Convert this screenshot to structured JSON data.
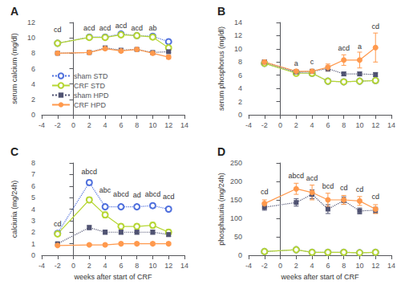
{
  "chart_data": [
    {
      "type": "line",
      "title": "A",
      "x": [
        -2,
        2,
        4,
        6,
        8,
        10,
        12
      ],
      "xlim": [
        -4,
        14
      ],
      "xticks": [
        -4,
        -2,
        0,
        2,
        4,
        6,
        8,
        10,
        12,
        14
      ],
      "ylabel": "serum calcium (mg/dl)",
      "ylim": [
        0,
        12
      ],
      "yticks": [
        0,
        2,
        4,
        6,
        8,
        10,
        12
      ],
      "grid": false,
      "legend": "lower left",
      "series": [
        {
          "name": "sham STD",
          "marker": "open-circle",
          "line_style": "dotted",
          "values": [
            9.3,
            10.1,
            10.1,
            10.5,
            10.3,
            10.2,
            9.5
          ],
          "errors": [
            0.15,
            0.12,
            0.12,
            0.12,
            0.12,
            0.12,
            0.2
          ]
        },
        {
          "name": "CRF STD",
          "marker": "open-circle",
          "line_style": "solid",
          "values": [
            9.3,
            10.05,
            10.05,
            10.4,
            10.3,
            10.1,
            8.7
          ],
          "errors": [
            0.15,
            0.12,
            0.12,
            0.12,
            0.12,
            0.18,
            0.25
          ]
        },
        {
          "name": "sham HPD",
          "marker": "square",
          "line_style": "dotted",
          "values": [
            8.0,
            8.1,
            8.7,
            8.4,
            8.5,
            8.1,
            8.2
          ],
          "errors": [
            0.12,
            0.1,
            0.12,
            0.12,
            0.15,
            0.12,
            0.12
          ]
        },
        {
          "name": "CRF HPD",
          "marker": "circle",
          "line_style": "solid",
          "values": [
            8.0,
            8.1,
            8.6,
            8.3,
            8.5,
            8.0,
            7.5
          ],
          "errors": [
            0.12,
            0.1,
            0.12,
            0.12,
            0.15,
            0.2,
            0.25
          ]
        }
      ],
      "annotations": [
        {
          "x": -2,
          "y": 10.6,
          "text": "cd"
        },
        {
          "x": 2,
          "y": 10.85,
          "text": "acd"
        },
        {
          "x": 4,
          "y": 10.85,
          "text": "acd"
        },
        {
          "x": 6,
          "y": 11.1,
          "text": "acd"
        },
        {
          "x": 8,
          "y": 10.85,
          "text": "acd"
        },
        {
          "x": 10,
          "y": 10.75,
          "text": "ab"
        }
      ]
    },
    {
      "type": "line",
      "title": "B",
      "x": [
        -2,
        2,
        4,
        6,
        8,
        10,
        12
      ],
      "xlim": [
        -4,
        14
      ],
      "xticks": [
        -4,
        -2,
        0,
        2,
        4,
        6,
        8,
        10,
        12,
        14
      ],
      "ylabel": "serum phosphorus (mg/dl)",
      "ylim": [
        0,
        14
      ],
      "yticks": [
        0,
        2,
        4,
        6,
        8,
        10,
        12,
        14
      ],
      "grid": false,
      "series": [
        {
          "name": "sham STD",
          "marker": "open-circle",
          "line_style": "dotted",
          "values": [
            7.8,
            6.4,
            6.3,
            5.1,
            5.0,
            5.1,
            5.2
          ],
          "errors": [
            0.25,
            0.2,
            0.2,
            0.2,
            0.2,
            0.2,
            0.2
          ]
        },
        {
          "name": "CRF STD",
          "marker": "open-circle",
          "line_style": "solid",
          "values": [
            7.8,
            6.3,
            6.3,
            5.1,
            5.0,
            5.1,
            5.2
          ],
          "errors": [
            0.25,
            0.2,
            0.2,
            0.2,
            0.2,
            0.2,
            0.2
          ]
        },
        {
          "name": "sham HPD",
          "marker": "square",
          "line_style": "dotted",
          "values": [
            8.0,
            6.5,
            6.6,
            7.0,
            6.2,
            6.2,
            6.1
          ],
          "errors": [
            0.3,
            0.25,
            0.25,
            0.4,
            0.3,
            0.3,
            0.3
          ]
        },
        {
          "name": "CRF HPD",
          "marker": "circle",
          "line_style": "solid",
          "values": [
            8.0,
            6.6,
            6.6,
            7.2,
            8.3,
            8.3,
            10.2
          ],
          "errors": [
            0.3,
            0.25,
            0.25,
            0.5,
            0.8,
            1.2,
            2.2
          ]
        }
      ],
      "annotations": [
        {
          "x": 2,
          "y": 7.3,
          "text": "a"
        },
        {
          "x": 4,
          "y": 7.5,
          "text": "c"
        },
        {
          "x": 8,
          "y": 9.5,
          "text": "acd"
        },
        {
          "x": 10,
          "y": 9.8,
          "text": "a"
        },
        {
          "x": 12,
          "y": 12.9,
          "text": "cd"
        }
      ]
    },
    {
      "type": "line",
      "title": "C",
      "x": [
        -2,
        2,
        4,
        6,
        8,
        10,
        12
      ],
      "xlabel": "weeks after start of CRF",
      "xlim": [
        -4,
        14
      ],
      "xticks": [
        -4,
        -2,
        0,
        2,
        4,
        6,
        8,
        10,
        12,
        14
      ],
      "ylabel": "calciuria (mg/24h)",
      "ylim": [
        0,
        8
      ],
      "yticks": [
        0,
        1,
        2,
        3,
        4,
        5,
        6,
        7,
        8
      ],
      "grid": false,
      "series": [
        {
          "name": "sham STD",
          "marker": "open-circle",
          "line_style": "dotted",
          "values": [
            1.9,
            6.3,
            4.2,
            4.2,
            4.2,
            4.3,
            4.0
          ],
          "errors": [
            0.15,
            0.22,
            0.18,
            0.18,
            0.18,
            0.18,
            0.18
          ]
        },
        {
          "name": "CRF STD",
          "marker": "open-circle",
          "line_style": "solid",
          "values": [
            1.85,
            4.8,
            3.5,
            2.5,
            2.5,
            2.6,
            2.0
          ],
          "errors": [
            0.15,
            0.22,
            0.25,
            0.22,
            0.22,
            0.25,
            0.22
          ]
        },
        {
          "name": "sham HPD",
          "marker": "square",
          "line_style": "dotted",
          "values": [
            1.0,
            2.4,
            2.0,
            2.0,
            2.0,
            2.0,
            1.8
          ],
          "errors": [
            0.1,
            0.18,
            0.18,
            0.18,
            0.18,
            0.18,
            0.18
          ]
        },
        {
          "name": "CRF HPD",
          "marker": "circle",
          "line_style": "solid",
          "values": [
            0.85,
            0.9,
            0.9,
            1.0,
            1.0,
            1.0,
            1.0
          ],
          "errors": [
            0.08,
            0.08,
            0.12,
            0.12,
            0.12,
            0.12,
            0.12
          ]
        }
      ],
      "annotations": [
        {
          "x": -2,
          "y": 2.4,
          "text": "cd"
        },
        {
          "x": 2,
          "y": 6.9,
          "text": "abcd"
        },
        {
          "x": 4,
          "y": 5.3,
          "text": "abc"
        },
        {
          "x": 6,
          "y": 5.0,
          "text": "abcd"
        },
        {
          "x": 8,
          "y": 4.9,
          "text": "ad"
        },
        {
          "x": 10,
          "y": 5.0,
          "text": "abcd"
        },
        {
          "x": 12,
          "y": 4.8,
          "text": "acd"
        }
      ]
    },
    {
      "type": "line",
      "title": "D",
      "x": [
        -2,
        2,
        4,
        6,
        8,
        10,
        12
      ],
      "xlabel": "weeks after start of CRF",
      "xlim": [
        -4,
        14
      ],
      "xticks": [
        -4,
        -2,
        0,
        2,
        4,
        6,
        8,
        10,
        12,
        14
      ],
      "ylabel": "phosphaturia (mg/24h)",
      "ylim": [
        0,
        250
      ],
      "yticks": [
        0,
        50,
        100,
        150,
        200,
        250
      ],
      "grid": false,
      "series": [
        {
          "name": "sham STD",
          "marker": "open-circle",
          "line_style": "dotted",
          "values": [
            10,
            15,
            8,
            8,
            8,
            7,
            8
          ],
          "errors": [
            1,
            2,
            1,
            1,
            1,
            1,
            1
          ]
        },
        {
          "name": "CRF STD",
          "marker": "open-circle",
          "line_style": "solid",
          "values": [
            10,
            15,
            8,
            8,
            8,
            7,
            8
          ],
          "errors": [
            1,
            2,
            1,
            1,
            1,
            1,
            1
          ]
        },
        {
          "name": "sham HPD",
          "marker": "square",
          "line_style": "dotted",
          "values": [
            130,
            143,
            165,
            125,
            148,
            120,
            122
          ],
          "errors": [
            8,
            10,
            12,
            12,
            10,
            8,
            8
          ]
        },
        {
          "name": "CRF HPD",
          "marker": "circle",
          "line_style": "solid",
          "values": [
            140,
            180,
            170,
            150,
            150,
            147,
            125
          ],
          "errors": [
            10,
            15,
            20,
            18,
            12,
            12,
            12
          ]
        }
      ],
      "annotations": [
        {
          "x": -2,
          "y": 162,
          "text": "cd"
        },
        {
          "x": 2,
          "y": 205,
          "text": "abcd"
        },
        {
          "x": 4,
          "y": 198,
          "text": "acd"
        },
        {
          "x": 6,
          "y": 178,
          "text": "bcd"
        },
        {
          "x": 8,
          "y": 173,
          "text": "cd"
        },
        {
          "x": 10,
          "y": 168,
          "text": "cd"
        },
        {
          "x": 12,
          "y": 148,
          "text": "cd"
        }
      ]
    }
  ]
}
